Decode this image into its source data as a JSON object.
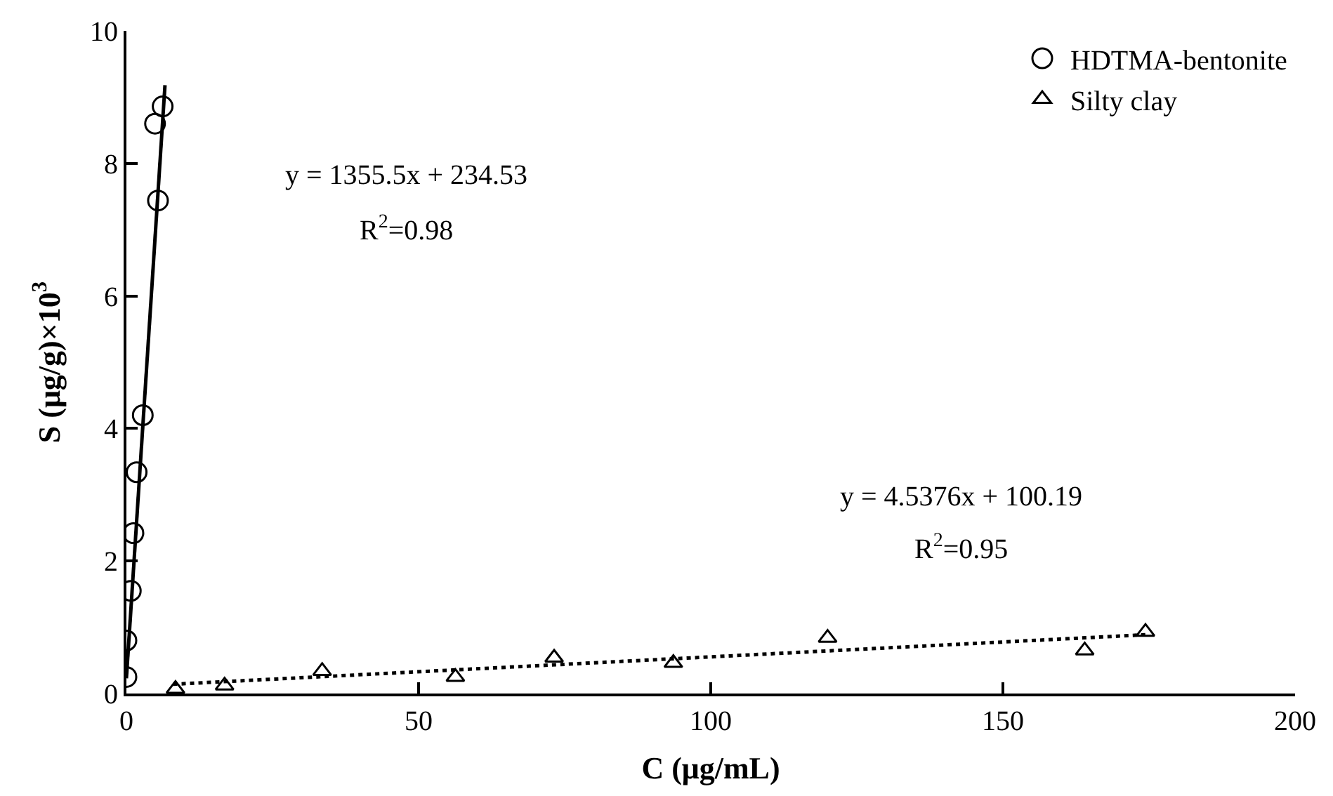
{
  "chart_data": {
    "type": "scatter",
    "xlabel": "C (μg/mL)",
    "ylabel": "S (μg/g)×10$^{3}$",
    "series": [
      {
        "name": "HDTMA-bentonite",
        "color": "#000000",
        "marker": "circle",
        "x": [
          0,
          0,
          0.75,
          1.2,
          1.75,
          2.8,
          5.4,
          4.9,
          6.2
        ],
        "values": [
          0.25,
          0.8,
          1.55,
          2.42,
          3.34,
          4.2,
          7.44,
          8.6,
          8.86
        ]
      },
      {
        "name": "Silty clay",
        "color": "#000000",
        "marker": "triangle",
        "x": [
          8.4,
          16.8,
          33.5,
          56.3,
          73.2,
          93.6,
          120,
          164,
          174.4
        ],
        "values": [
          0.07,
          0.12,
          0.34,
          0.25,
          0.54,
          0.46,
          0.84,
          0.65,
          0.93
        ]
      },
      {
        "type": "line",
        "color": "#000000",
        "line_style": "solid",
        "x": [
          0,
          6.6
        ],
        "values": [
          0.23,
          9.18
        ]
      },
      {
        "type": "line",
        "color": "#000000",
        "line_style": "dotted",
        "x": [
          8,
          175
        ],
        "values": [
          0.14,
          0.89
        ]
      }
    ],
    "xlim": [
      0,
      200
    ],
    "xticks": [
      0,
      50,
      100,
      150,
      200
    ],
    "ylim": [
      0,
      10
    ],
    "yticks": [
      0,
      2,
      4,
      6,
      8,
      10
    ],
    "legend": "top right",
    "annotations": [
      "y = 1355.5x + 234.53",
      "R$^{2}$=0.98",
      "y = 4.5376x + 100.19",
      "R$^{2}$=0.95"
    ]
  }
}
